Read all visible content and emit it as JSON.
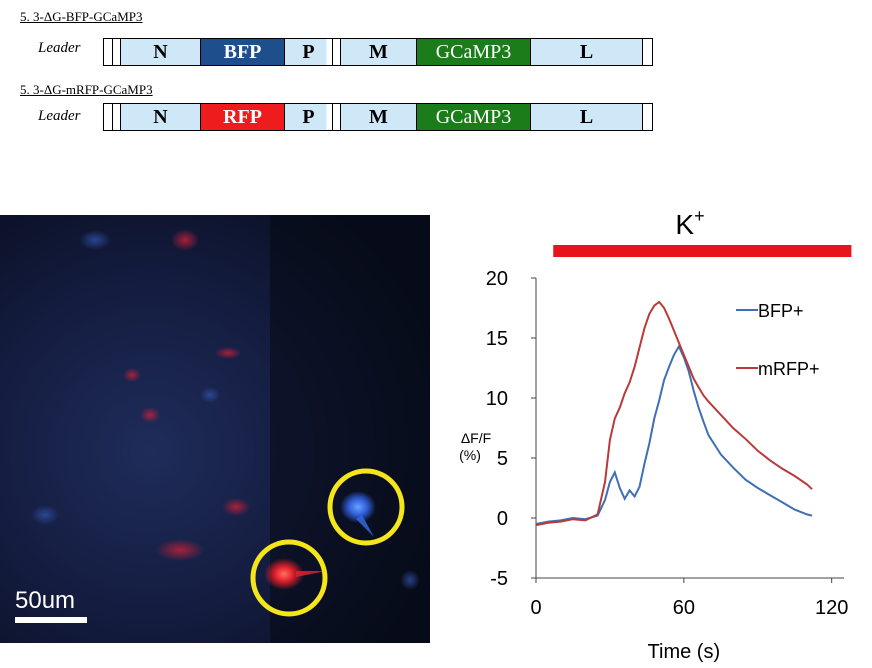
{
  "constructs": [
    {
      "title": "5. 3-ΔG-BFP-GCaMP3",
      "leader": "Leader",
      "segments": [
        {
          "label": "N",
          "color": "#cfe8f8"
        },
        {
          "label": "BFP",
          "color": "#1f4e8c"
        },
        {
          "label": "P",
          "color": "#cfe8f8"
        },
        {
          "label": "M",
          "color": "#cfe8f8"
        },
        {
          "label": "GCaMP3",
          "color": "#1a7d1a"
        },
        {
          "label": "L",
          "color": "#cfe8f8"
        }
      ]
    },
    {
      "title": "5. 3-ΔG-mRFP-GCaMP3",
      "leader": "Leader",
      "segments": [
        {
          "label": "N",
          "color": "#cfe8f8"
        },
        {
          "label": "RFP",
          "color": "#ee1c1c"
        },
        {
          "label": "P",
          "color": "#cfe8f8"
        },
        {
          "label": "M",
          "color": "#cfe8f8"
        },
        {
          "label": "GCaMP3",
          "color": "#1a7d1a"
        },
        {
          "label": "L",
          "color": "#cfe8f8"
        }
      ]
    }
  ],
  "micrograph": {
    "scale_bar_label": "50um",
    "background_color": "#0c1226",
    "circle_color": "#f5e51b"
  },
  "chart_data": {
    "type": "line",
    "stimulus_label": "K",
    "stimulus_superscript": "+",
    "stimulus_bar": {
      "start": 7,
      "end": 128,
      "color": "#e8141c"
    },
    "xlabel": "Time (s)",
    "ylabel_line1": "ΔF/F",
    "ylabel_line2": "(%)",
    "xlim": [
      0,
      125
    ],
    "ylim": [
      -5,
      20
    ],
    "xticks": [
      0,
      60,
      120
    ],
    "yticks": [
      -5,
      0,
      5,
      10,
      15,
      20
    ],
    "legend_position": "right",
    "series": [
      {
        "name": "BFP+",
        "color": "#3f6fb5",
        "x": [
          0,
          5,
          10,
          15,
          20,
          25,
          28,
          30,
          32,
          34,
          36,
          38,
          40,
          42,
          44,
          46,
          48,
          50,
          52,
          54,
          56,
          58,
          60,
          62,
          64,
          66,
          68,
          70,
          75,
          80,
          85,
          90,
          95,
          100,
          105,
          110,
          112
        ],
        "y": [
          -0.5,
          -0.3,
          -0.2,
          0.0,
          -0.1,
          0.2,
          1.5,
          3.0,
          3.8,
          2.5,
          1.6,
          2.3,
          1.8,
          2.6,
          4.5,
          6.2,
          8.3,
          9.8,
          11.5,
          12.6,
          13.6,
          14.3,
          13.4,
          12.2,
          10.6,
          9.2,
          8.0,
          6.9,
          5.3,
          4.2,
          3.2,
          2.5,
          1.9,
          1.3,
          0.7,
          0.3,
          0.2
        ]
      },
      {
        "name": "mRFP+",
        "color": "#b83a3a",
        "x": [
          0,
          5,
          10,
          15,
          20,
          25,
          28,
          30,
          32,
          34,
          36,
          38,
          40,
          42,
          44,
          46,
          48,
          50,
          52,
          54,
          56,
          58,
          60,
          62,
          64,
          66,
          68,
          70,
          75,
          80,
          85,
          90,
          95,
          100,
          105,
          110,
          112
        ],
        "y": [
          -0.6,
          -0.4,
          -0.3,
          -0.1,
          -0.2,
          0.3,
          3.0,
          6.5,
          8.3,
          9.2,
          10.4,
          11.3,
          12.6,
          14.2,
          15.8,
          17.0,
          17.7,
          18.0,
          17.5,
          16.6,
          15.6,
          14.6,
          13.6,
          12.6,
          11.6,
          10.9,
          10.2,
          9.7,
          8.6,
          7.5,
          6.6,
          5.6,
          4.8,
          4.1,
          3.5,
          2.8,
          2.4
        ]
      }
    ]
  }
}
